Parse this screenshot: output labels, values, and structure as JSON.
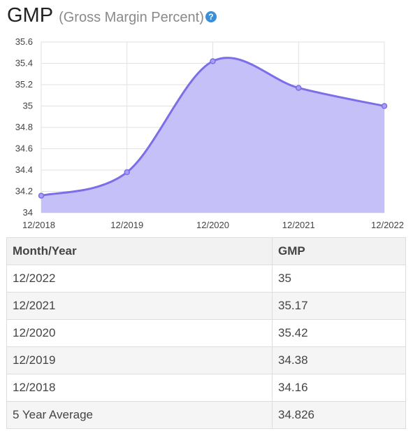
{
  "header": {
    "title": "GMP",
    "subtitle": "(Gross Margin Percent)",
    "help_icon": "question-circle-icon"
  },
  "chart_data": {
    "type": "area",
    "x": [
      "12/2018",
      "12/2019",
      "12/2020",
      "12/2021",
      "12/2022"
    ],
    "values": [
      34.16,
      34.38,
      35.42,
      35.17,
      35
    ],
    "ylim": [
      34,
      35.6
    ],
    "yticks": [
      "34",
      "34.2",
      "34.4",
      "34.6",
      "34.8",
      "35",
      "35.2",
      "35.4",
      "35.6"
    ],
    "grid": true,
    "colors": {
      "line": "#7b6ee8",
      "fill": "#c3bdf9",
      "grid": "#e2e2e2"
    }
  },
  "table": {
    "headers": [
      "Month/Year",
      "GMP"
    ],
    "rows": [
      [
        "12/2022",
        "35"
      ],
      [
        "12/2021",
        "35.17"
      ],
      [
        "12/2020",
        "35.42"
      ],
      [
        "12/2019",
        "34.38"
      ],
      [
        "12/2018",
        "34.16"
      ],
      [
        "5 Year Average",
        "34.826"
      ]
    ]
  }
}
